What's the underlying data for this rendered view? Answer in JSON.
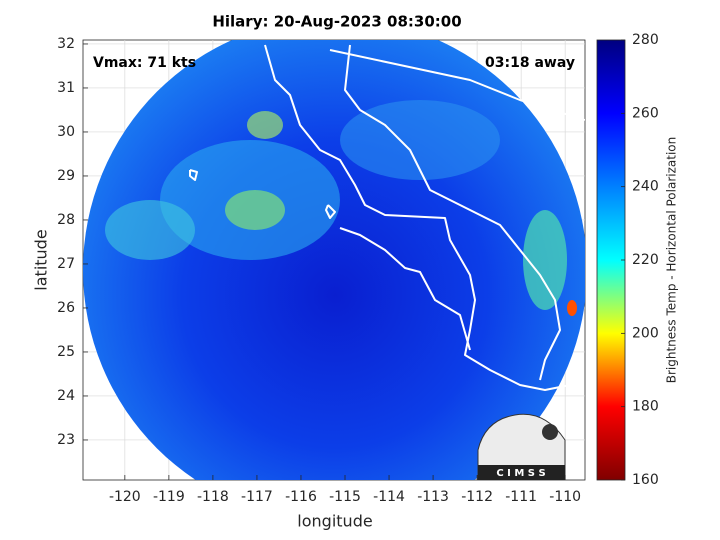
{
  "chart_data": {
    "type": "map",
    "title": "Hilary: 20-Aug-2023 08:30:00",
    "annotations": [
      "Vmax: 71 kts",
      "03:18 away"
    ],
    "x_label": "longitude",
    "y_label": "latitude",
    "xlim": [
      -120.95,
      -109.55
    ],
    "xticks": [
      -120,
      -119,
      -118,
      -117,
      -116,
      -115,
      -114,
      -113,
      -112,
      -111,
      -110
    ],
    "ylim": [
      22.09,
      32.09
    ],
    "yticks": [
      23,
      24,
      25,
      26,
      27,
      28,
      29,
      30,
      31,
      32
    ],
    "grid": true,
    "colorbar": {
      "label": "Brightness Temp - Horizontal Polarization",
      "clim": [
        160,
        280
      ],
      "ticks": [
        160,
        180,
        200,
        220,
        240,
        260,
        280
      ],
      "colors": [
        "#800000",
        "#ff0000",
        "#ffff00",
        "#00ffff",
        "#0080ff",
        "#0000ff",
        "#000080"
      ]
    },
    "logo": "C I M S S"
  }
}
